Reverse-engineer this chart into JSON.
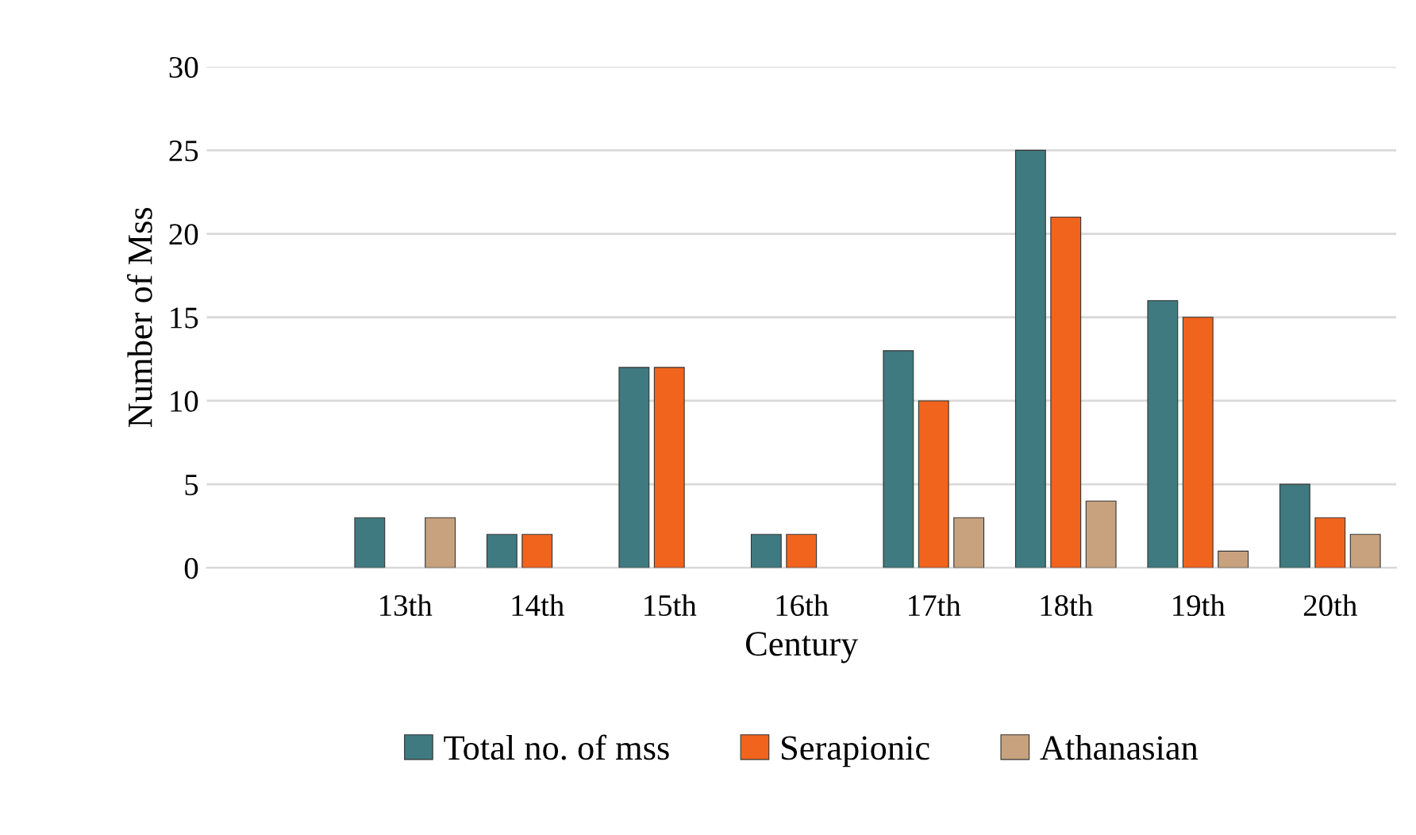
{
  "chart_data": {
    "type": "bar",
    "xlabel": "Century",
    "ylabel": "Number of Mss",
    "categories": [
      null,
      "13th",
      "14th",
      "15th",
      "16th",
      "17th",
      "18th",
      "19th",
      "20th"
    ],
    "series": [
      {
        "name": "Total no. of mss",
        "color": "#3f7a80",
        "values": [
          null,
          3,
          2,
          12,
          2,
          13,
          25,
          16,
          5
        ]
      },
      {
        "name": "Serapionic",
        "color": "#f0641e",
        "values": [
          null,
          null,
          2,
          12,
          2,
          10,
          21,
          15,
          3
        ]
      },
      {
        "name": "Athanasian",
        "color": "#c8a27e",
        "values": [
          null,
          3,
          null,
          null,
          null,
          3,
          4,
          1,
          2
        ]
      }
    ],
    "ylim": [
      0,
      30
    ],
    "yticks": [
      0,
      5,
      10,
      15,
      20,
      25,
      30
    ],
    "grid": "y",
    "legend": "bottom"
  }
}
